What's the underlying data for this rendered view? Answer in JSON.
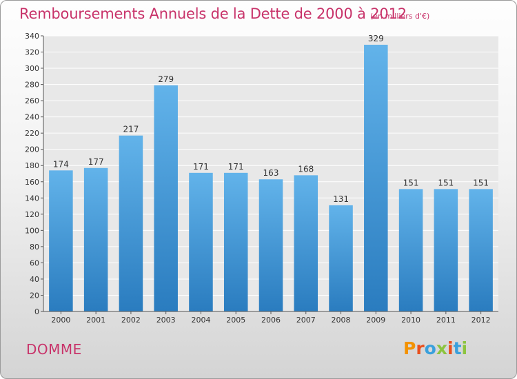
{
  "header": {
    "title": "Remboursements Annuels de la Dette de 2000 à 2012",
    "unit": "(en milliers d'€)"
  },
  "footer": {
    "commune": "DOMME",
    "logo_text": "Proxiti",
    "logo_colors": [
      "#f39200",
      "#e9501d",
      "#3aa0dc",
      "#8cc43f",
      "#e9501d",
      "#3aa0dc",
      "#8cc43f"
    ]
  },
  "colors": {
    "accent": "#c8336a",
    "bar_top": "#62b3ea",
    "bar_bottom": "#2a7cbf",
    "grid": "#ffffff",
    "plot_bg": "#e8e8e8"
  },
  "chart_data": {
    "type": "bar",
    "categories": [
      "2000",
      "2001",
      "2002",
      "2003",
      "2004",
      "2005",
      "2006",
      "2007",
      "2008",
      "2009",
      "2010",
      "2011",
      "2012"
    ],
    "values": [
      174,
      177,
      217,
      279,
      171,
      171,
      163,
      168,
      131,
      329,
      151,
      151,
      151
    ],
    "ylim": [
      0,
      340
    ],
    "ytick_step": 20,
    "grid": true
  }
}
